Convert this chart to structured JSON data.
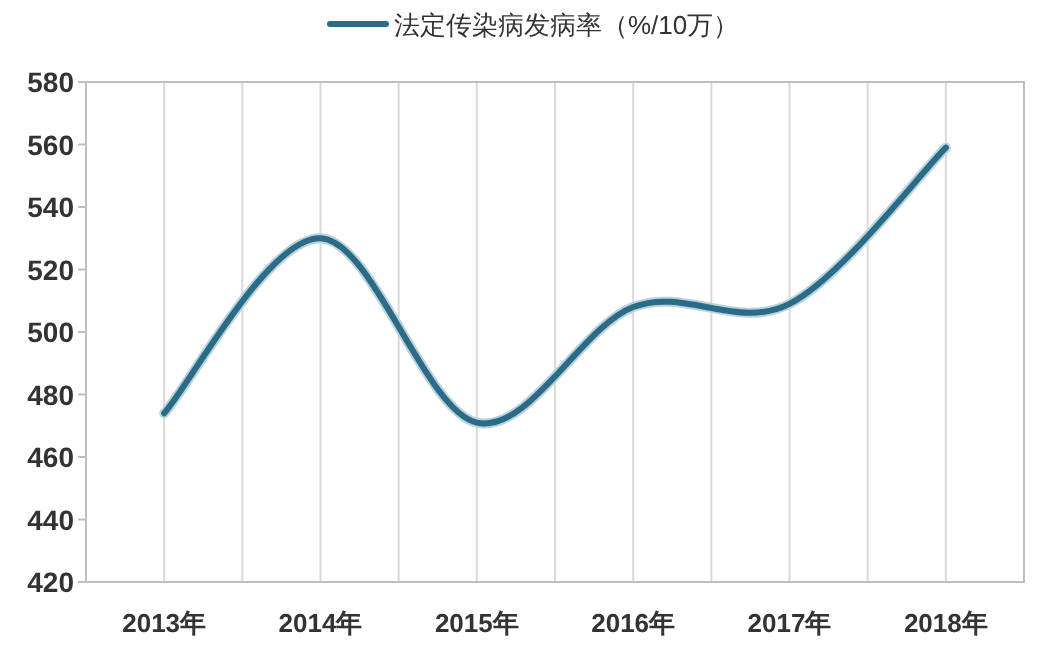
{
  "chart_data": {
    "type": "line",
    "categories": [
      "2013年",
      "2014年",
      "2015年",
      "2016年",
      "2017年",
      "2018年"
    ],
    "series": [
      {
        "name": "法定传染病发病率（%/10万）",
        "color": "#2b6b86",
        "values": [
          474,
          530,
          471,
          508,
          509,
          559
        ]
      }
    ],
    "ylim": [
      420,
      580
    ],
    "yticks": [
      420,
      440,
      460,
      480,
      500,
      520,
      540,
      560,
      580
    ],
    "grid": "x",
    "legend": "top",
    "marker": "none",
    "line_style": "solid"
  }
}
